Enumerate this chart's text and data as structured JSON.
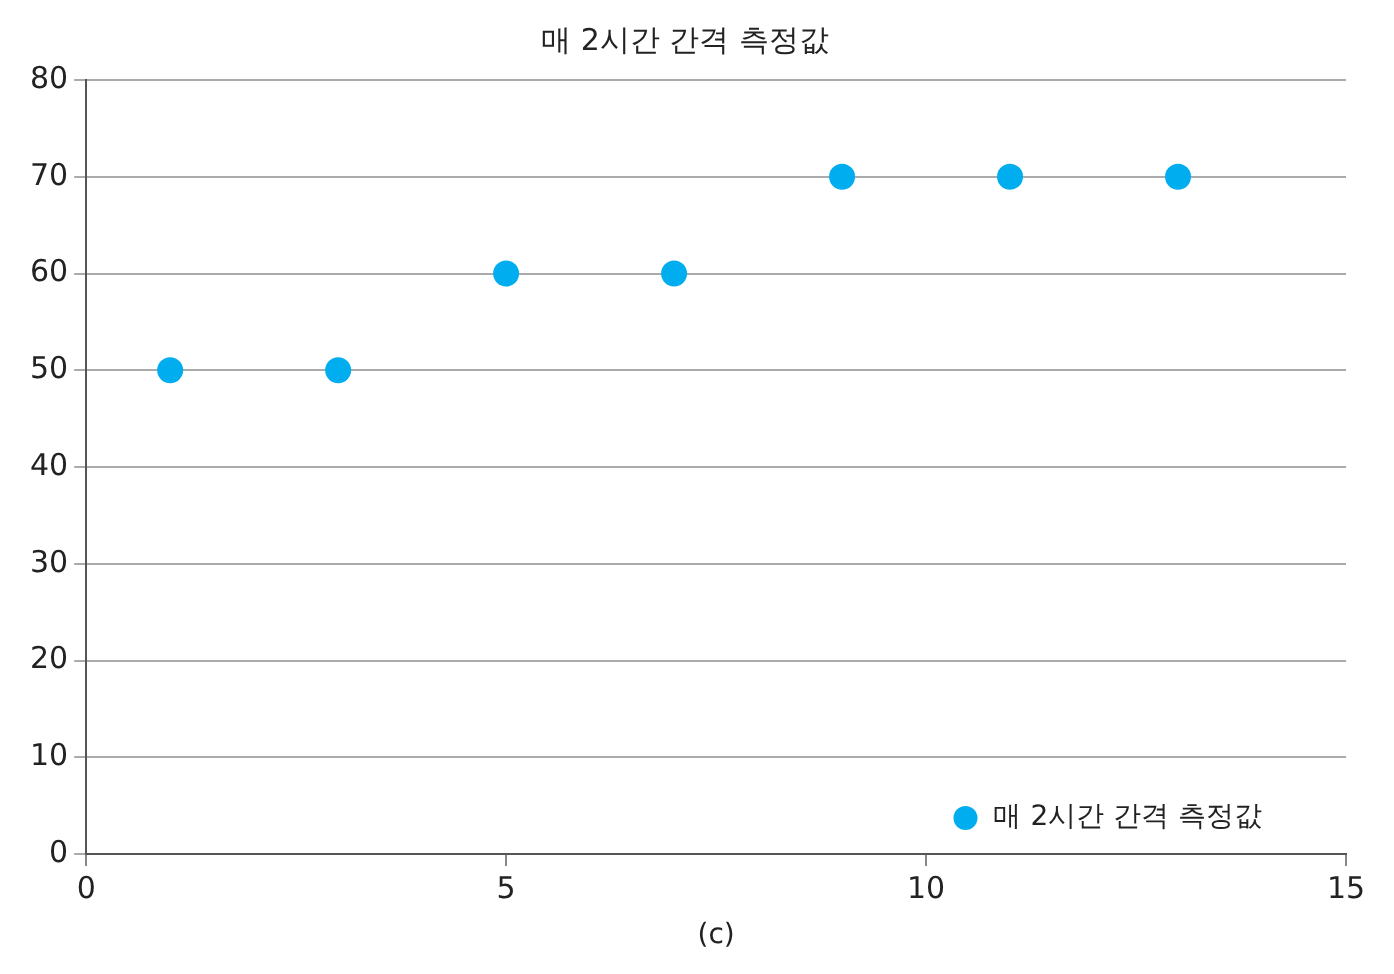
{
  "chart_data": {
    "type": "scatter",
    "title": "매 2시간 간격 측정값",
    "x": [
      1,
      3,
      5,
      7,
      9,
      11,
      13
    ],
    "series": [
      {
        "name": "매 2시간 간격 측정값",
        "color": "#00aeef",
        "values": [
          50,
          50,
          60,
          60,
          70,
          70,
          70
        ]
      }
    ],
    "xlim": [
      0,
      15
    ],
    "xticks": [
      0,
      5,
      10,
      15
    ],
    "ylim": [
      0,
      80
    ],
    "yticks": [
      0,
      10,
      20,
      30,
      40,
      50,
      60,
      70,
      80
    ],
    "grid": "y",
    "legend": "bottom right",
    "marker": "circle",
    "annotations": [
      "(c)"
    ]
  }
}
